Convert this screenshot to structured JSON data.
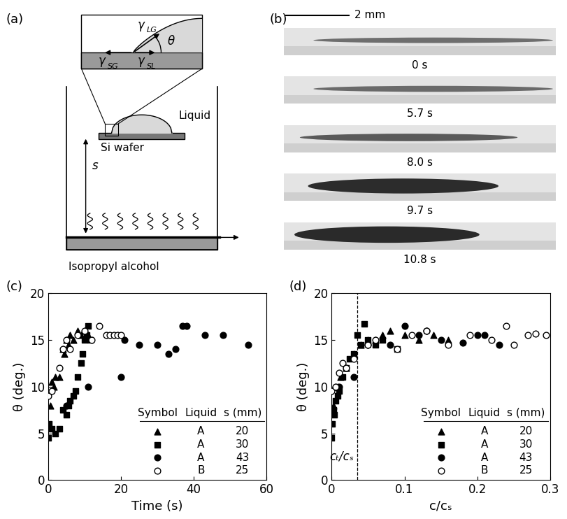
{
  "diagram": {
    "label": "(a)",
    "gamma_LG": {
      "symbol": "γ",
      "sub": "LG"
    },
    "gamma_SG": {
      "symbol": "γ",
      "sub": "SG"
    },
    "gamma_SL": {
      "symbol": "γ",
      "sub": "SL"
    },
    "angle": "θ",
    "liquid": "Liquid",
    "wafer": "Si wafer",
    "distance": "s",
    "source": "Isopropyl alcohol"
  },
  "photos": {
    "label": "(b)",
    "scale_bar": "2 mm",
    "frames": [
      "0 s",
      "5.7 s",
      "8.0 s",
      "9.7 s",
      "10.8 s"
    ]
  },
  "chart_data": [
    {
      "panel": "(c)",
      "type": "scatter",
      "x_label": "Time (s)",
      "y_label": "θ (deg.)",
      "xlim": [
        0,
        60
      ],
      "xticks": [
        0,
        20,
        40,
        60
      ],
      "ylim": [
        0,
        20
      ],
      "yticks": [
        0,
        5,
        10,
        15,
        20
      ],
      "legend_header": [
        "Symbol",
        "Liquid",
        "s (mm)"
      ],
      "series": [
        {
          "liquid": "A",
          "s_mm": 20,
          "marker": "triangle",
          "color": "#000000",
          "x": [
            0.5,
            1,
            1.5,
            2,
            3,
            4,
            4.5,
            5,
            5.5,
            6,
            7,
            8,
            9,
            10,
            11
          ],
          "values": [
            8,
            10.5,
            10,
            11,
            11,
            14,
            13.5,
            15,
            14.5,
            15.5,
            15,
            16,
            15.5,
            16,
            15.5
          ]
        },
        {
          "liquid": "A",
          "s_mm": 30,
          "marker": "square",
          "color": "#000000",
          "x": [
            0,
            0.3,
            1,
            2,
            3,
            4,
            5,
            5.5,
            6,
            7,
            7.5,
            8,
            9,
            9.5,
            10,
            10.5,
            11,
            11.5
          ],
          "values": [
            4.5,
            6,
            5.5,
            5,
            5.5,
            7.5,
            7,
            8,
            8.5,
            9,
            9.5,
            11,
            12.5,
            13.5,
            15,
            15.5,
            16.5,
            15
          ]
        },
        {
          "liquid": "A",
          "s_mm": 43,
          "marker": "circle",
          "color": "#000000",
          "x": [
            5,
            11,
            20,
            21,
            25,
            30,
            33,
            35,
            37,
            38,
            43,
            48,
            55
          ],
          "values": [
            8,
            10,
            11,
            15,
            14.5,
            14.5,
            13.5,
            14,
            16.5,
            16.5,
            15.5,
            15.5,
            14.5
          ]
        },
        {
          "liquid": "B",
          "s_mm": 25,
          "marker": "open circle",
          "color": "#000000",
          "x": [
            0,
            1,
            3,
            4,
            5,
            6,
            8,
            10,
            12,
            14,
            16,
            17,
            18,
            19,
            20
          ],
          "values": [
            9,
            9.5,
            12,
            14,
            15,
            14,
            15.5,
            16,
            15,
            16.5,
            15.5,
            15.5,
            15.5,
            15.5,
            15.5
          ]
        }
      ]
    },
    {
      "panel": "(d)",
      "type": "scatter",
      "x_label": "c/cₛ",
      "y_label": "θ (deg.)",
      "xlim": [
        0,
        0.3
      ],
      "xticks": [
        0,
        0.1,
        0.2,
        0.3
      ],
      "ylim": [
        0,
        20
      ],
      "yticks": [
        0,
        5,
        10,
        15,
        20
      ],
      "legend_header": [
        "Symbol",
        "Liquid",
        "s (mm)"
      ],
      "marker_line": {
        "value": 0.035,
        "label": "cₜ/cₛ",
        "line_style": "dashed"
      },
      "series": [
        {
          "liquid": "A",
          "s_mm": 20,
          "marker": "triangle",
          "color": "#000000",
          "x": [
            0.002,
            0.005,
            0.008,
            0.012,
            0.02,
            0.03,
            0.04,
            0.05,
            0.06,
            0.07,
            0.08,
            0.1,
            0.12,
            0.14,
            0.16
          ],
          "values": [
            8,
            10,
            10,
            11,
            12,
            13.5,
            14.5,
            15,
            15,
            15.5,
            16,
            15.5,
            15,
            15.5,
            15
          ]
        },
        {
          "liquid": "A",
          "s_mm": 30,
          "marker": "square",
          "color": "#000000",
          "x": [
            0,
            0.001,
            0.002,
            0.003,
            0.005,
            0.008,
            0.01,
            0.015,
            0.02,
            0.025,
            0.03,
            0.035,
            0.04,
            0.045,
            0.05,
            0.06,
            0.07,
            0.09
          ],
          "values": [
            4.5,
            6,
            7.5,
            7,
            8.5,
            9,
            9.5,
            11,
            12,
            13,
            13.5,
            15.5,
            14.5,
            16.7,
            15,
            14.5,
            15,
            14
          ]
        },
        {
          "liquid": "A",
          "s_mm": 43,
          "marker": "circle",
          "color": "#000000",
          "x": [
            0.01,
            0.03,
            0.05,
            0.08,
            0.1,
            0.12,
            0.13,
            0.15,
            0.18,
            0.2,
            0.21,
            0.23
          ],
          "values": [
            10,
            11,
            14.5,
            14.5,
            16.5,
            15.5,
            16,
            15,
            14.7,
            15.5,
            15.5,
            14.5
          ]
        },
        {
          "liquid": "B",
          "s_mm": 25,
          "marker": "open circle",
          "color": "#000000",
          "x": [
            0,
            0.005,
            0.01,
            0.015,
            0.02,
            0.03,
            0.05,
            0.06,
            0.09,
            0.11,
            0.13,
            0.16,
            0.19,
            0.22,
            0.24,
            0.25,
            0.27,
            0.28,
            0.295
          ],
          "values": [
            9.5,
            10,
            11.5,
            12.5,
            12,
            13,
            14.5,
            15,
            14,
            15.5,
            16,
            14.5,
            15.5,
            15,
            16.5,
            14.5,
            15.5,
            15.7,
            15.5
          ]
        }
      ]
    }
  ]
}
